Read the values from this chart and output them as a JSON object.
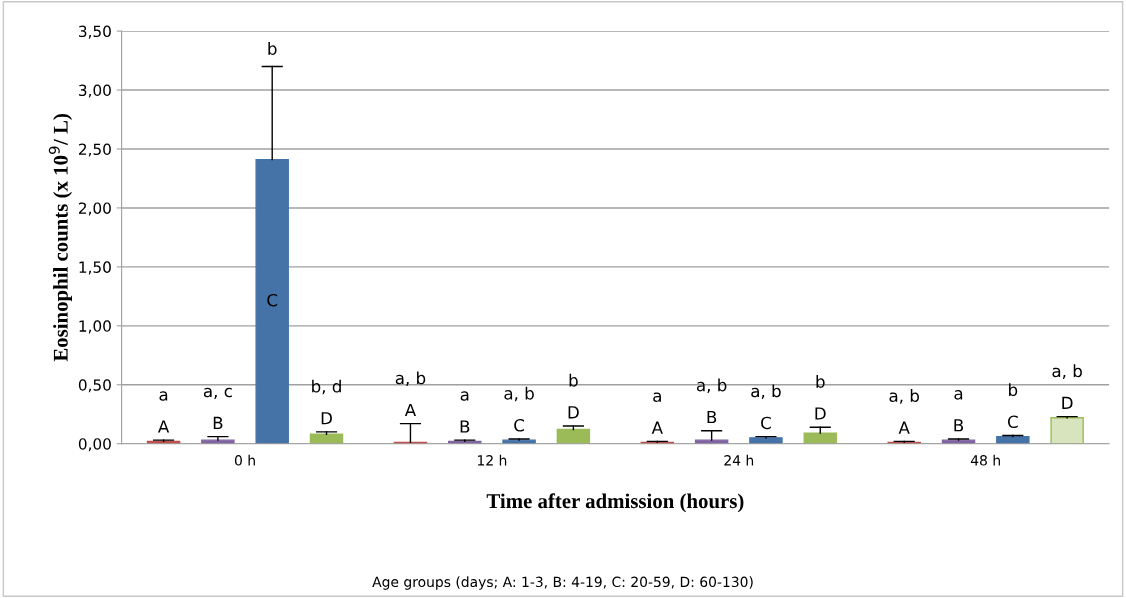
{
  "chart_data": {
    "type": "bar",
    "xlabel": "Time after admission (hours)",
    "ylabel": "Eosinophil counts (x 10$^{9}$/ L)",
    "categories": [
      "0 h",
      "12 h",
      "24 h",
      "48 h"
    ],
    "series": [
      {
        "name": "A",
        "color": "#c0504d",
        "values": [
          0.02,
          0.01,
          0.01,
          0.01
        ],
        "errors": [
          [
            0.02,
            0.03
          ],
          [
            0.01,
            0.17
          ],
          [
            0.01,
            0.02
          ],
          [
            0.01,
            0.02
          ]
        ]
      },
      {
        "name": "B",
        "color": "#8064a2",
        "values": [
          0.03,
          0.02,
          0.03,
          0.03
        ],
        "errors": [
          [
            0.03,
            0.06
          ],
          [
            0.02,
            0.03
          ],
          [
            0.03,
            0.11
          ],
          [
            0.03,
            0.04
          ]
        ]
      },
      {
        "name": "C",
        "color": "#4572a7",
        "values": [
          2.41,
          0.03,
          0.05,
          0.06
        ],
        "errors": [
          [
            2.41,
            3.2
          ],
          [
            0.03,
            0.04
          ],
          [
            0.05,
            0.06
          ],
          [
            0.06,
            0.07
          ]
        ]
      },
      {
        "name": "D",
        "color": "#9bbb59",
        "colors": [
          "#9bbb59",
          "#9bbb59",
          "#9bbb59",
          "#d7e4bd"
        ],
        "values": [
          0.08,
          0.12,
          0.09,
          0.22
        ],
        "errors": [
          [
            0.08,
            0.1
          ],
          [
            0.12,
            0.15
          ],
          [
            0.09,
            0.14
          ],
          [
            0.22,
            0.23
          ]
        ]
      }
    ],
    "ylim": [
      0,
      3.5
    ],
    "yticks": [
      {
        "value": 0,
        "label": "0,00"
      },
      {
        "value": 0.5,
        "label": "0,50"
      },
      {
        "value": 1,
        "label": "1,00"
      },
      {
        "value": 1.5,
        "label": "1,50"
      },
      {
        "value": 2,
        "label": "2,00"
      },
      {
        "value": 2.5,
        "label": "2,50"
      },
      {
        "value": 3,
        "label": "3,00"
      },
      {
        "value": 3.5,
        "label": "3,50"
      }
    ],
    "grid": "y",
    "annotations": [
      "a",
      "a, c",
      "b",
      "b, d",
      "a, b",
      "a",
      "a, b",
      "b",
      "a",
      "a, b",
      "a, b",
      "b",
      "a, b",
      "a",
      "b",
      "a, b",
      "Age groups (days; A: 1-3, B: 4-19, C: 20-59, D: 60-130)"
    ]
  }
}
